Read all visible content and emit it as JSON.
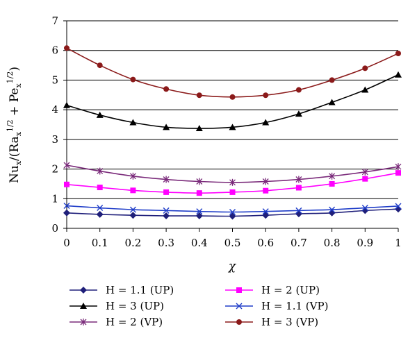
{
  "chart_data": {
    "type": "line",
    "xlabel": "χ",
    "ylabel": "Nu_x/(Ra_x^{1/2} + Pe_x^{1/2})",
    "xlim": [
      0,
      1
    ],
    "ylim": [
      0,
      7
    ],
    "x": [
      0,
      0.1,
      0.2,
      0.3,
      0.4,
      0.5,
      0.6,
      0.7,
      0.8,
      0.9,
      1
    ],
    "x_ticks": [
      "0",
      "0.1",
      "0.2",
      "0.3",
      "0.4",
      "0.5",
      "0.6",
      "0.7",
      "0.8",
      "0.9",
      "1"
    ],
    "y_ticks": [
      "0",
      "1",
      "2",
      "3",
      "4",
      "5",
      "6",
      "7"
    ],
    "grid": "horizontal",
    "legend_position": "bottom",
    "series": [
      {
        "name": "H = 1.1 (UP)",
        "color": "#1f1f7a",
        "marker": "diamond",
        "values": [
          0.52,
          0.47,
          0.44,
          0.42,
          0.42,
          0.41,
          0.44,
          0.49,
          0.52,
          0.6,
          0.65
        ]
      },
      {
        "name": "H = 3 (UP)",
        "color": "#000000",
        "marker": "triangle",
        "values": [
          4.15,
          3.82,
          3.57,
          3.41,
          3.37,
          3.41,
          3.57,
          3.86,
          4.25,
          4.67,
          5.18
        ]
      },
      {
        "name": "H = 2 (VP)",
        "color": "#7a2a7a",
        "marker": "asterisk",
        "values": [
          2.13,
          1.93,
          1.76,
          1.65,
          1.58,
          1.55,
          1.58,
          1.65,
          1.76,
          1.9,
          2.08
        ]
      },
      {
        "name": "H = 2 (UP)",
        "color": "#ff00ff",
        "marker": "square",
        "values": [
          1.48,
          1.38,
          1.28,
          1.22,
          1.19,
          1.22,
          1.27,
          1.37,
          1.5,
          1.67,
          1.87
        ]
      },
      {
        "name": "H = 1.1 (VP)",
        "color": "#1e3cc8",
        "marker": "x",
        "values": [
          0.76,
          0.69,
          0.63,
          0.6,
          0.57,
          0.55,
          0.57,
          0.6,
          0.63,
          0.69,
          0.75
        ]
      },
      {
        "name": "H = 3 (VP)",
        "color": "#8b1a1a",
        "marker": "circle",
        "values": [
          6.08,
          5.5,
          5.02,
          4.7,
          4.49,
          4.43,
          4.49,
          4.67,
          5.0,
          5.4,
          5.9
        ]
      }
    ],
    "legend_order": [
      0,
      3,
      1,
      4,
      2,
      5
    ]
  }
}
